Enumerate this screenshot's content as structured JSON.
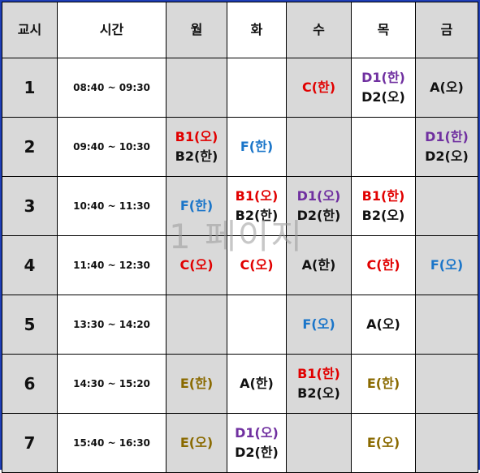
{
  "header": {
    "period": "교시",
    "time": "시간",
    "mon": "월",
    "tue": "화",
    "wed": "수",
    "thu": "목",
    "fri": "금"
  },
  "rows": [
    {
      "period": "1",
      "time": "08:40 ~ 09:30",
      "mon": [],
      "tue": [],
      "wed": [
        {
          "text": "C(한)",
          "color": "red"
        }
      ],
      "thu": [
        {
          "text": "D1(한)",
          "color": "purple"
        },
        {
          "text": "D2(오)",
          "color": "black"
        }
      ],
      "fri": [
        {
          "text": "A(오)",
          "color": "black"
        }
      ]
    },
    {
      "period": "2",
      "time": "09:40 ~ 10:30",
      "mon": [
        {
          "text": "B1(오)",
          "color": "red"
        },
        {
          "text": "B2(한)",
          "color": "black"
        }
      ],
      "tue": [
        {
          "text": "F(한)",
          "color": "blue"
        }
      ],
      "wed": [],
      "thu": [],
      "fri": [
        {
          "text": "D1(한)",
          "color": "purple"
        },
        {
          "text": "D2(오)",
          "color": "black"
        }
      ]
    },
    {
      "period": "3",
      "time": "10:40 ~ 11:30",
      "mon": [
        {
          "text": "F(한)",
          "color": "blue"
        }
      ],
      "tue": [
        {
          "text": "B1(오)",
          "color": "red"
        },
        {
          "text": "B2(한)",
          "color": "black"
        }
      ],
      "wed": [
        {
          "text": "D1(오)",
          "color": "purple"
        },
        {
          "text": "D2(한)",
          "color": "black"
        }
      ],
      "thu": [
        {
          "text": "B1(한)",
          "color": "red"
        },
        {
          "text": "B2(오)",
          "color": "black"
        }
      ],
      "fri": []
    },
    {
      "period": "4",
      "time": "11:40 ~ 12:30",
      "mon": [
        {
          "text": "C(오)",
          "color": "red"
        }
      ],
      "tue": [
        {
          "text": "C(오)",
          "color": "red"
        }
      ],
      "wed": [
        {
          "text": "A(한)",
          "color": "black"
        }
      ],
      "thu": [
        {
          "text": "C(한)",
          "color": "red"
        }
      ],
      "fri": [
        {
          "text": "F(오)",
          "color": "blue"
        }
      ]
    },
    {
      "period": "5",
      "time": "13:30 ~ 14:20",
      "mon": [],
      "tue": [],
      "wed": [
        {
          "text": "F(오)",
          "color": "blue"
        }
      ],
      "thu": [
        {
          "text": "A(오)",
          "color": "black"
        }
      ],
      "fri": []
    },
    {
      "period": "6",
      "time": "14:30 ~ 15:20",
      "mon": [
        {
          "text": "E(한)",
          "color": "olive"
        }
      ],
      "tue": [
        {
          "text": "A(한)",
          "color": "black"
        }
      ],
      "wed": [
        {
          "text": "B1(한)",
          "color": "red"
        },
        {
          "text": "B2(오)",
          "color": "black"
        }
      ],
      "thu": [
        {
          "text": "E(한)",
          "color": "olive"
        }
      ],
      "fri": []
    },
    {
      "period": "7",
      "time": "15:40 ~ 16:30",
      "mon": [
        {
          "text": "E(오)",
          "color": "olive"
        }
      ],
      "tue": [
        {
          "text": "D1(오)",
          "color": "purple"
        },
        {
          "text": "D2(한)",
          "color": "black"
        }
      ],
      "wed": [],
      "thu": [
        {
          "text": "E(오)",
          "color": "olive"
        }
      ],
      "fri": []
    }
  ],
  "watermark": "1 페이지",
  "colors": {
    "red": "#e10000",
    "black": "#111111",
    "blue": "#1a75c9",
    "purple": "#7030a0",
    "olive": "#8a6a00",
    "gray_cell": "#d9d9d9",
    "frame": "#1f3fb8"
  }
}
